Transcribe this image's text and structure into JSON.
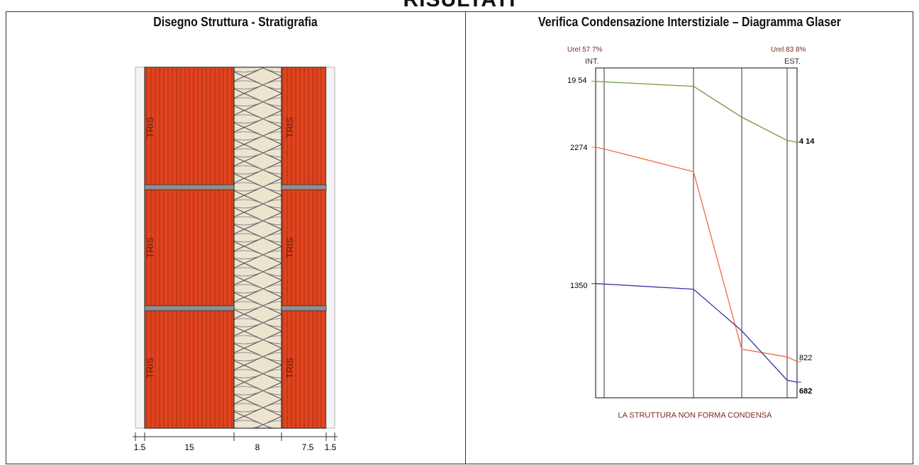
{
  "page_title": "RISULTATI",
  "left_panel": {
    "title": "Disegno Struttura - Stratigrafia",
    "layers": [
      {
        "material": "plaster",
        "thickness_label": "1.5",
        "mark": ""
      },
      {
        "material": "brick",
        "thickness_label": "15",
        "mark": "TRIS"
      },
      {
        "material": "insulation",
        "thickness_label": "8",
        "mark": ""
      },
      {
        "material": "brick",
        "thickness_label": "7.5",
        "mark": "TRIS"
      },
      {
        "material": "plaster",
        "thickness_label": "1.5",
        "mark": ""
      }
    ],
    "colors": {
      "brick": "#e0441e",
      "insulation": "#ece4cf",
      "mortar": "#8f8f8f"
    }
  },
  "right_panel": {
    "title": "Verifica Condensazione Interstiziale – Diagramma Glaser",
    "urel_int": "Urel 57 7%",
    "urel_est": "Urel 83 8%",
    "int_label": "INT.",
    "est_label": "EST.",
    "result": "LA STRUTTURA NON FORMA CONDENSA",
    "chart_data": {
      "type": "line",
      "x_boundaries": [
        0,
        1.5,
        16.5,
        24.5,
        32,
        33.5
      ],
      "series": [
        {
          "key": "temperature",
          "color": "#6f9a3a",
          "points": [
            [
              0,
              19.54
            ],
            [
              1.5,
              19.43
            ],
            [
              16.5,
              18.28
            ],
            [
              24.5,
              10.5
            ],
            [
              32,
              4.6
            ],
            [
              33.5,
              4.14
            ]
          ]
        },
        {
          "key": "saturation_pressure",
          "color": "#f26a3d",
          "points": [
            [
              0,
              2274
            ],
            [
              1.5,
              2262
            ],
            [
              16.5,
              2108
            ],
            [
              24.5,
              906
            ],
            [
              32,
              853
            ],
            [
              33.5,
              822
            ]
          ]
        },
        {
          "key": "vapour_pressure",
          "color": "#3535a0",
          "points": [
            [
              0,
              1350
            ],
            [
              1.5,
              1347
            ],
            [
              16.5,
              1312
            ],
            [
              24.5,
              1030
            ],
            [
              32,
              696
            ],
            [
              33.5,
              682
            ]
          ]
        }
      ],
      "left_labels": [
        "19 54",
        "2274",
        "1350"
      ],
      "right_labels": [
        "4 14",
        "822",
        "682"
      ]
    }
  }
}
